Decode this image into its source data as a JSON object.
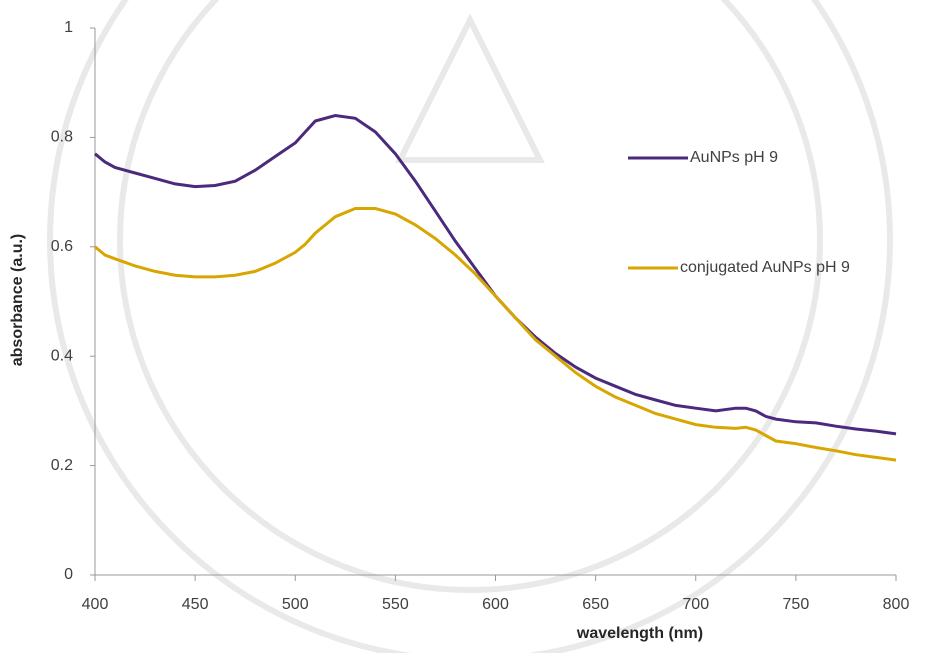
{
  "chart_data": {
    "type": "line",
    "x_label": "wavelength (nm)",
    "y_label": "absorbance (a.u.)",
    "x": [
      400,
      405,
      410,
      420,
      430,
      440,
      450,
      460,
      470,
      480,
      490,
      500,
      505,
      510,
      520,
      530,
      540,
      550,
      560,
      570,
      580,
      590,
      600,
      610,
      620,
      630,
      640,
      650,
      660,
      670,
      680,
      690,
      700,
      710,
      720,
      725,
      730,
      735,
      740,
      750,
      760,
      770,
      780,
      790,
      800
    ],
    "series": [
      {
        "name": "AuNPs pH 9",
        "color": "#4b2a7e",
        "values": [
          0.77,
          0.755,
          0.745,
          0.735,
          0.725,
          0.715,
          0.71,
          0.712,
          0.72,
          0.74,
          0.765,
          0.79,
          0.81,
          0.83,
          0.84,
          0.835,
          0.81,
          0.77,
          0.72,
          0.665,
          0.61,
          0.56,
          0.51,
          0.47,
          0.435,
          0.405,
          0.38,
          0.36,
          0.345,
          0.33,
          0.32,
          0.31,
          0.305,
          0.3,
          0.305,
          0.305,
          0.3,
          0.29,
          0.285,
          0.28,
          0.278,
          0.272,
          0.267,
          0.263,
          0.258
        ]
      },
      {
        "name": "conjugated AuNPs pH 9",
        "color": "#d8a600",
        "values": [
          0.6,
          0.585,
          0.578,
          0.565,
          0.555,
          0.548,
          0.545,
          0.545,
          0.548,
          0.555,
          0.57,
          0.59,
          0.605,
          0.625,
          0.655,
          0.67,
          0.67,
          0.66,
          0.64,
          0.615,
          0.585,
          0.55,
          0.51,
          0.47,
          0.43,
          0.4,
          0.37,
          0.345,
          0.325,
          0.31,
          0.295,
          0.285,
          0.275,
          0.27,
          0.268,
          0.27,
          0.265,
          0.255,
          0.245,
          0.24,
          0.233,
          0.227,
          0.22,
          0.215,
          0.21
        ]
      }
    ],
    "xlim": [
      400,
      800
    ],
    "xticks": [
      400,
      450,
      500,
      550,
      600,
      650,
      700,
      750,
      800
    ],
    "ylim": [
      0,
      1
    ],
    "yticks": [
      0,
      0.2,
      0.4,
      0.6,
      0.8,
      1
    ],
    "grid": false
  }
}
